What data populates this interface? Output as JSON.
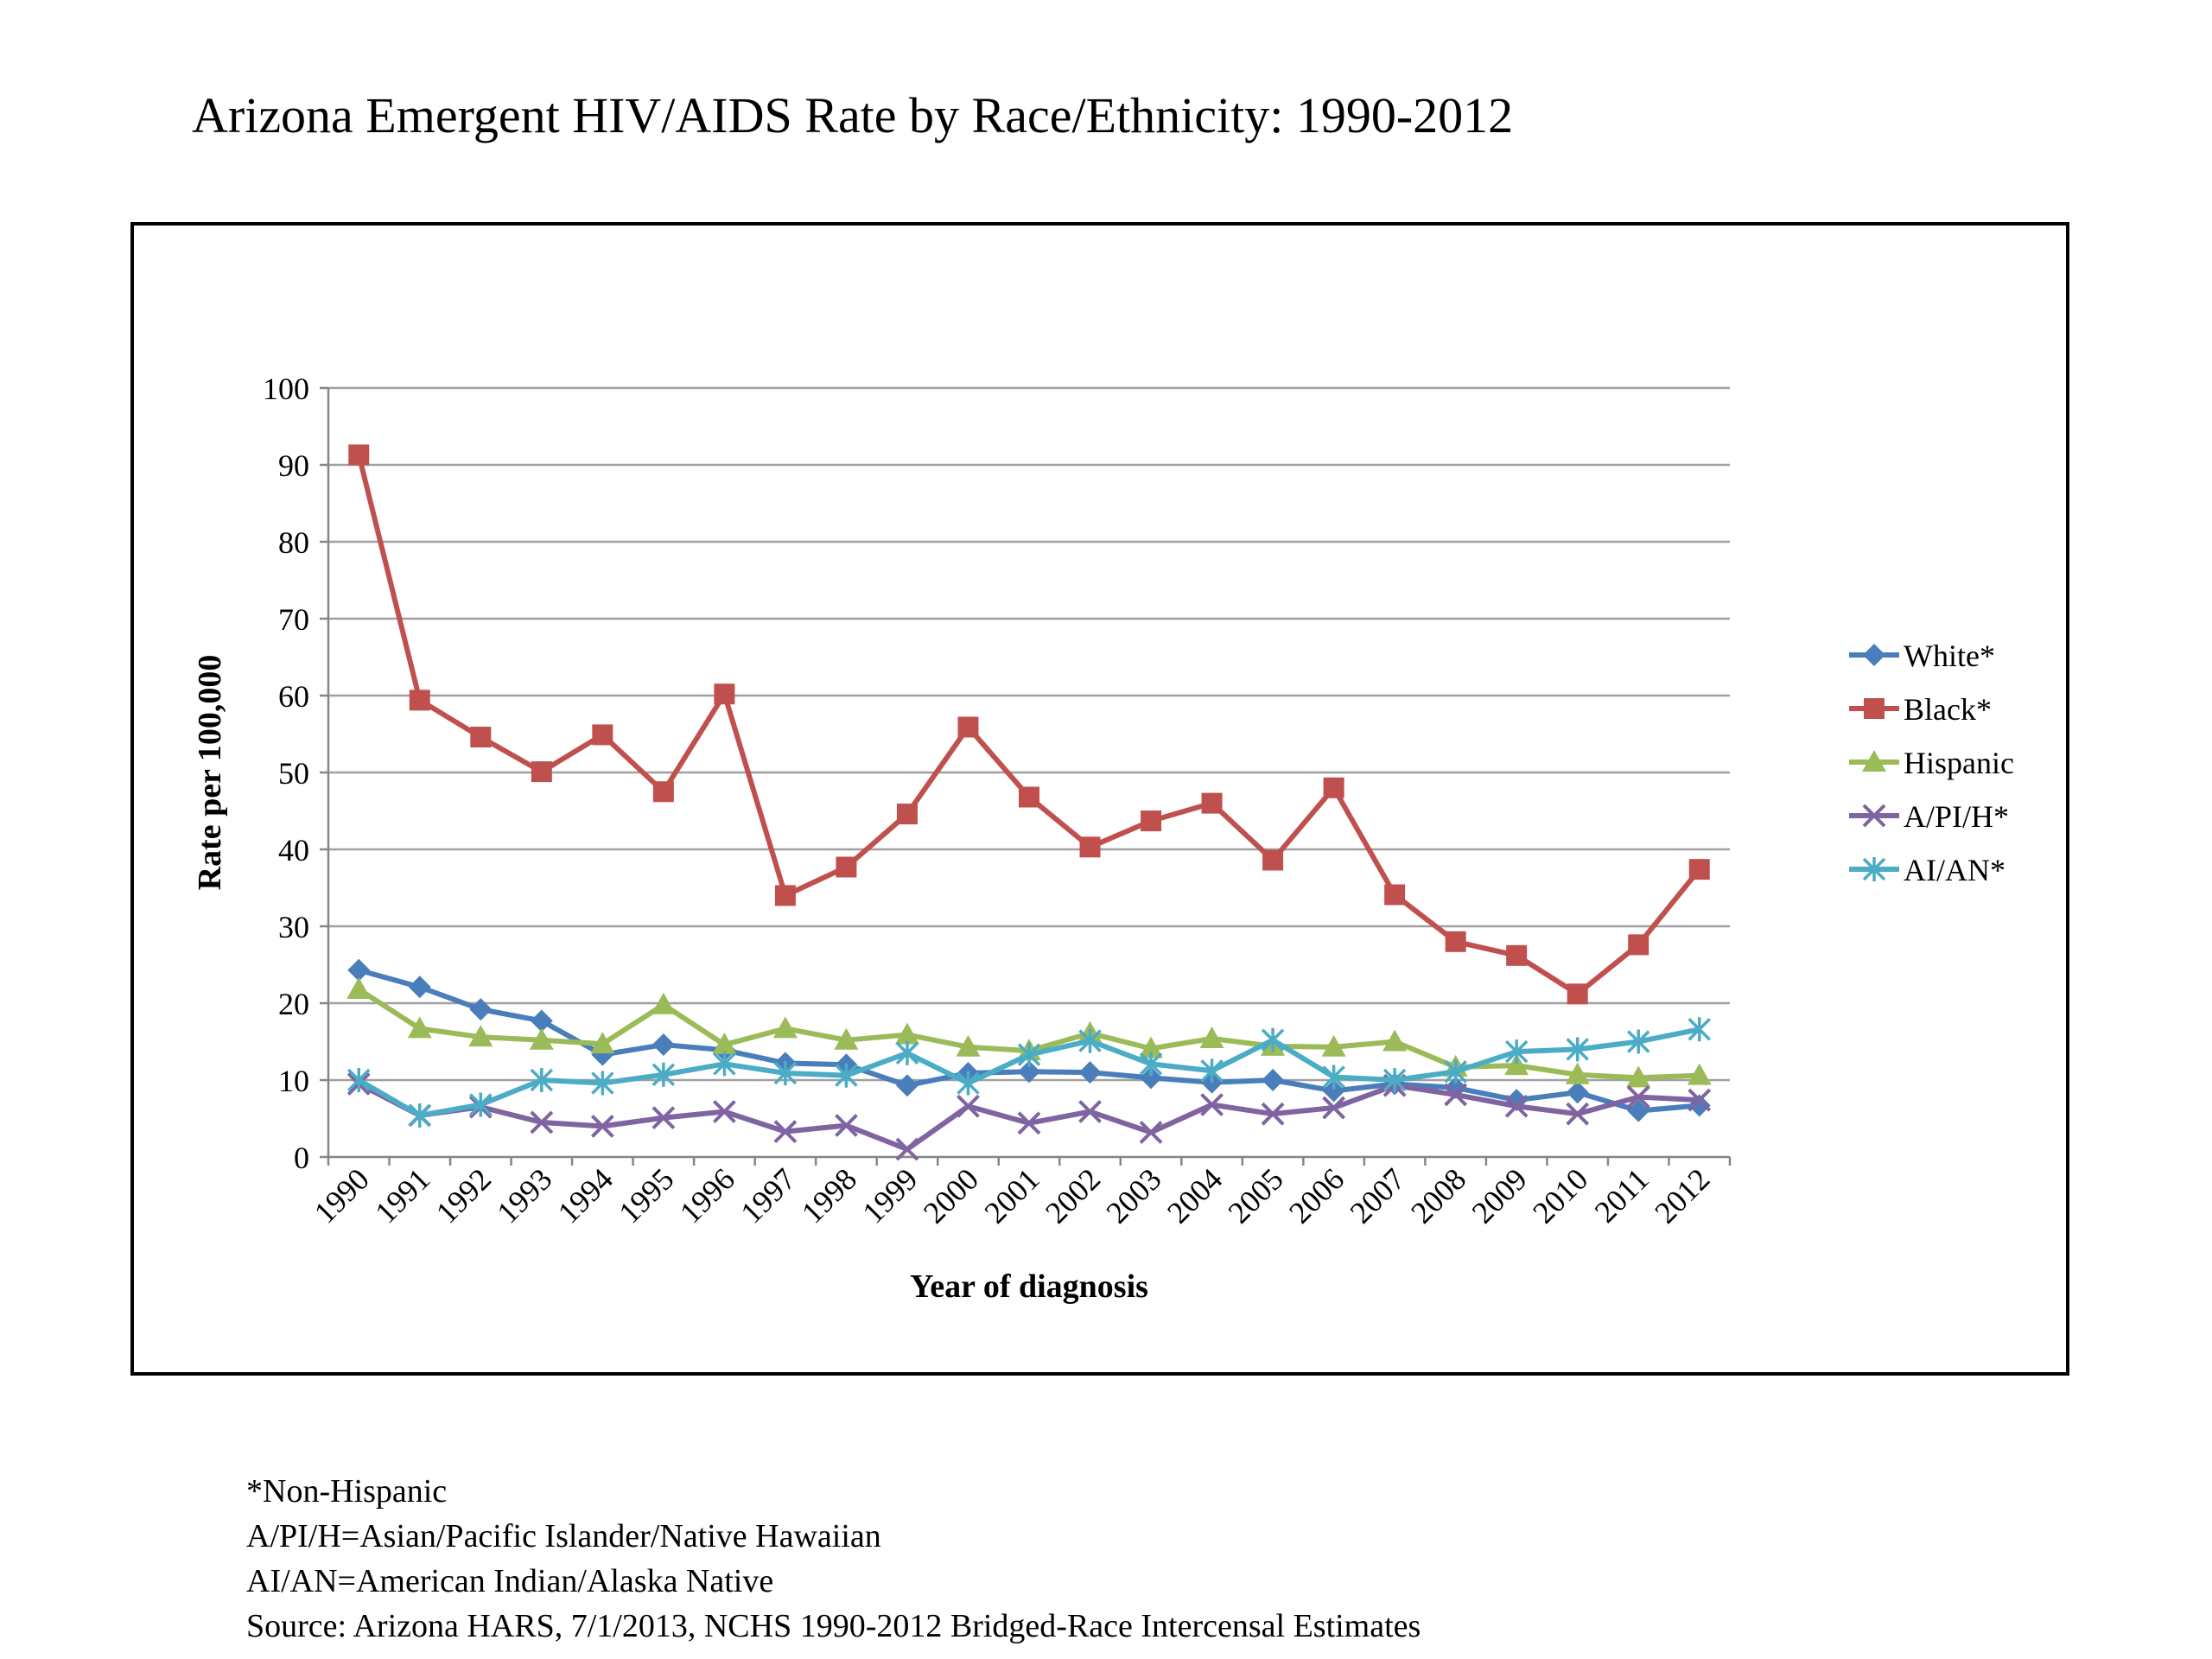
{
  "title": "Arizona Emergent HIV/AIDS Rate by Race/Ethnicity: 1990-2012",
  "footnotes": [
    "*Non-Hispanic",
    "A/PI/H=Asian/Pacific Islander/Native Hawaiian",
    "AI/AN=American Indian/Alaska Native",
    "Source: Arizona HARS, 7/1/2013, NCHS 1990-2012 Bridged-Race Intercensal Estimates"
  ],
  "chart_data": {
    "type": "line",
    "xlabel": "Year of diagnosis",
    "ylabel": "Rate per 100,000",
    "ylim": [
      0,
      100
    ],
    "yticks": [
      0,
      10,
      20,
      30,
      40,
      50,
      60,
      70,
      80,
      90,
      100
    ],
    "grid": "horizontal",
    "legend": "right",
    "categories": [
      "1990",
      "1991",
      "1992",
      "1993",
      "1994",
      "1995",
      "1996",
      "1997",
      "1998",
      "1999",
      "2000",
      "2001",
      "2002",
      "2003",
      "2004",
      "2005",
      "2006",
      "2007",
      "2008",
      "2009",
      "2010",
      "2011",
      "2012"
    ],
    "series": [
      {
        "name": "White*",
        "color": "#4a7ebb",
        "marker": "diamond",
        "values": [
          24.3,
          22.1,
          19.2,
          17.7,
          13.3,
          14.6,
          13.9,
          12.2,
          12.0,
          9.3,
          10.9,
          11.1,
          11.0,
          10.3,
          9.7,
          10.0,
          8.6,
          9.5,
          9.0,
          7.4,
          8.4,
          6.0,
          6.7
        ]
      },
      {
        "name": "Black*",
        "color": "#c0504d",
        "marker": "square",
        "values": [
          91.3,
          59.4,
          54.6,
          50.1,
          54.9,
          47.5,
          60.2,
          34.0,
          37.7,
          44.6,
          55.9,
          46.8,
          40.3,
          43.7,
          46.0,
          38.6,
          48.0,
          34.1,
          28.0,
          26.2,
          21.2,
          27.6,
          37.4
        ]
      },
      {
        "name": "Hispanic",
        "color": "#9bbb59",
        "marker": "triangle",
        "values": [
          21.8,
          16.7,
          15.6,
          15.2,
          14.7,
          19.8,
          14.6,
          16.7,
          15.2,
          15.9,
          14.3,
          13.8,
          16.1,
          14.1,
          15.4,
          14.4,
          14.3,
          15.0,
          11.7,
          11.9,
          10.7,
          10.3,
          10.6
        ]
      },
      {
        "name": "A/PI/H*",
        "color": "#8064a2",
        "marker": "x",
        "values": [
          9.5,
          5.4,
          6.5,
          4.5,
          4.0,
          5.1,
          5.9,
          3.3,
          4.1,
          1.0,
          6.6,
          4.4,
          5.9,
          3.2,
          6.8,
          5.6,
          6.4,
          9.3,
          8.1,
          6.6,
          5.6,
          7.8,
          7.4
        ]
      },
      {
        "name": "AI/AN*",
        "color": "#4bacc6",
        "marker": "asterisk",
        "values": [
          10.0,
          5.4,
          6.8,
          10.0,
          9.6,
          10.7,
          12.1,
          10.9,
          10.6,
          13.5,
          9.6,
          13.3,
          15.1,
          12.1,
          11.2,
          15.2,
          10.4,
          10.0,
          11.1,
          13.7,
          14.0,
          15.0,
          16.6
        ]
      }
    ]
  }
}
